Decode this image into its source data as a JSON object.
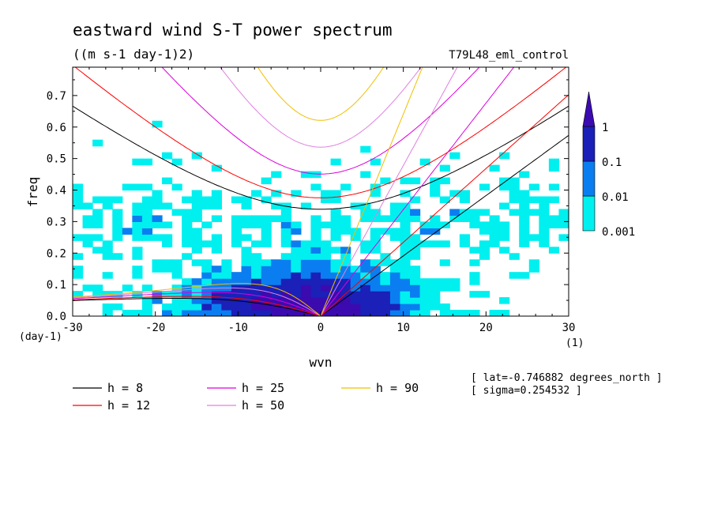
{
  "chart_data": {
    "type": "heatmap",
    "title": "eastward wind S-T power spectrum",
    "units": "((m s-1 day-1)2)",
    "run_name": "T79L48_eml_control",
    "xlabel": "wvn",
    "ylabel": "freq",
    "x_unit_label": "(1)",
    "y_unit_label": "(day-1)",
    "xlim": [
      -30,
      30
    ],
    "ylim": [
      0.0,
      0.79
    ],
    "x_ticks": [
      -30,
      -20,
      -10,
      0,
      10,
      20,
      30
    ],
    "x_tick_labels": [
      "-30",
      "-20",
      "-10",
      "0",
      "10",
      "20",
      "30"
    ],
    "y_ticks": [
      0.0,
      0.1,
      0.2,
      0.3,
      0.4,
      0.5,
      0.6,
      0.7
    ],
    "y_tick_labels": [
      "0.0",
      "0.1",
      "0.2",
      "0.3",
      "0.4",
      "0.5",
      "0.6",
      "0.7"
    ],
    "colorbar": {
      "levels": [
        0.001,
        0.01,
        0.1,
        1
      ],
      "labels": [
        "0.001",
        "0.01",
        "0.1",
        "1"
      ],
      "colors": [
        "#00f0f0",
        "#0a7ef0",
        "#1a20b8",
        "#3b0bb0"
      ]
    },
    "contour_regions": [
      {
        "level": 0.001,
        "description": "broad cyan field",
        "x_range": [
          -30,
          30
        ],
        "y_range": [
          0.0,
          0.79
        ]
      },
      {
        "level": 0.01,
        "description": "mid blue core",
        "x_range": [
          -17,
          13
        ],
        "y_range": [
          0.0,
          0.27
        ]
      },
      {
        "level": 0.1,
        "description": "dark blue core",
        "x_range": [
          -8,
          7
        ],
        "y_range": [
          0.0,
          0.12
        ]
      },
      {
        "level": 1,
        "description": "peak near origin",
        "x_range": [
          -2,
          2
        ],
        "y_range": [
          0.0,
          0.02
        ]
      }
    ],
    "dispersion_curves": [
      {
        "label": "h = 8",
        "h": 8,
        "color": "#000000"
      },
      {
        "label": "h = 12",
        "h": 12,
        "color": "#ff0000"
      },
      {
        "label": "h = 25",
        "h": 25,
        "color": "#dd00dd"
      },
      {
        "label": "h = 50",
        "h": 50,
        "color": "#e080e0"
      },
      {
        "label": "h = 90",
        "h": 90,
        "color": "#f0c000"
      }
    ],
    "annotations": [
      "[ lat=-0.746882 degrees_north ]",
      "[ sigma=0.254532 ]"
    ]
  }
}
